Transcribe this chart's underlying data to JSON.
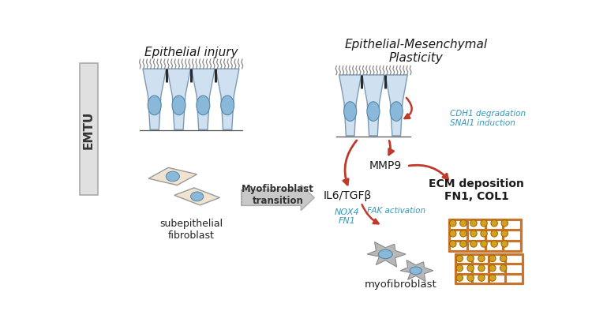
{
  "title_left": "Epithelial injury",
  "title_right": "Epithelial-Mesenchymal\nPlasticity",
  "label_emtu": "EMTU",
  "label_subepithelial": "subepithelial\nfibroblast",
  "label_myofibroblast": "myofibroblast",
  "label_transition": "Myofibroblast\ntransition",
  "label_mmp9": "MMP9",
  "label_il6": "IL6/TGFβ",
  "label_ecm": "ECM deposition\nFN1, COL1",
  "label_cdh1": "CDH1 degradation\nSNAI1 induction",
  "label_nox4": "NOX4\nFN1",
  "label_fak": "FAK activation",
  "bg_color": "#ffffff",
  "cell_fill": "#cfe1f0",
  "cell_stroke": "#7a9ab5",
  "nucleus_fill": "#89b8d8",
  "fibroblast_fill": "#f0e4d0",
  "fibroblast_stroke": "#999999",
  "myofib_fill": "#b8b8b8",
  "myofib_stroke": "#888888",
  "arrow_red": "#c0392b",
  "text_blue": "#3399bb",
  "text_dark": "#222222",
  "emtu_box": "#e0e0e0",
  "ecm_color": "#c8742a",
  "ecm_dot_fill": "#d4a020",
  "transition_arrow_fill": "#c8c8c8",
  "transition_arrow_edge": "#aaaaaa"
}
